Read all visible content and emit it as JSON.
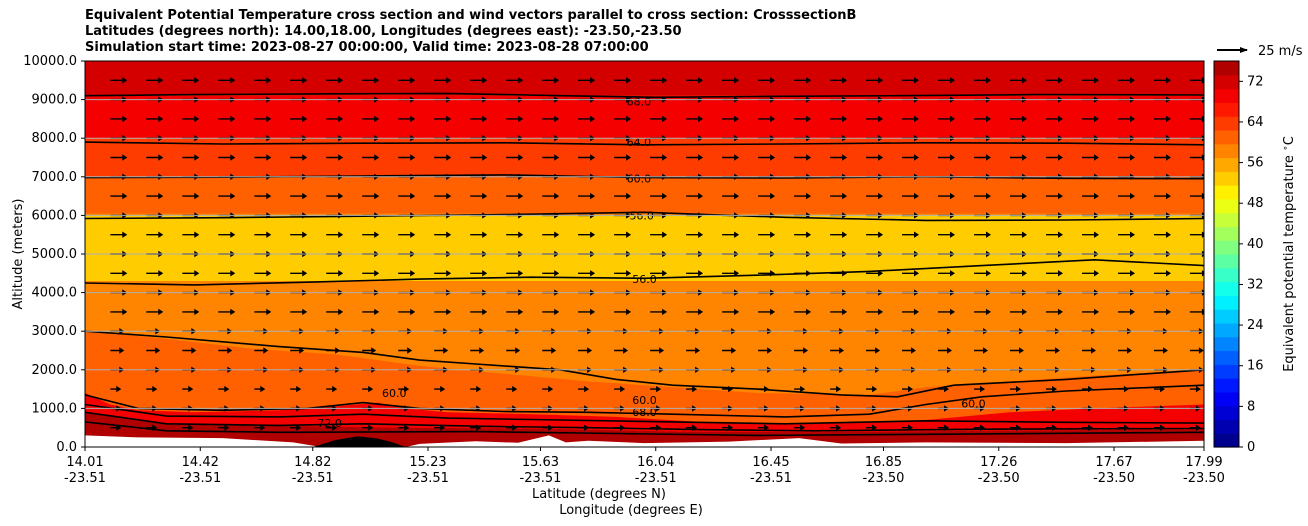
{
  "chart_data": {
    "type": "heatmap",
    "title": [
      "Equivalent Potential Temperature cross section and wind vectors parallel to cross section: CrosssectionB",
      "Latitudes (degrees north): 14.00,18.00, Longitudes (degrees east): -23.50,-23.50",
      "Simulation start time: 2023-08-27 00:00:00, Valid time: 2023-08-28 07:00:00"
    ],
    "ylabel": "Altitude (meters)",
    "xlabel_lines": [
      "Latitude (degrees N)",
      "Longitude (degrees E)"
    ],
    "ylim": [
      0,
      10000
    ],
    "xlim": [
      14.01,
      17.99
    ],
    "y_ticks": [
      0,
      1000,
      2000,
      3000,
      4000,
      5000,
      6000,
      7000,
      8000,
      9000,
      10000
    ],
    "y_tick_labels": [
      "0.0",
      "1000.0",
      "2000.0",
      "3000.0",
      "4000.0",
      "5000.0",
      "6000.0",
      "7000.0",
      "8000.0",
      "9000.0",
      "10000.0"
    ],
    "x_ticks": [
      {
        "lat": "14.01",
        "lon": "-23.51"
      },
      {
        "lat": "14.42",
        "lon": "-23.51"
      },
      {
        "lat": "14.82",
        "lon": "-23.51"
      },
      {
        "lat": "15.23",
        "lon": "-23.51"
      },
      {
        "lat": "15.63",
        "lon": "-23.51"
      },
      {
        "lat": "16.04",
        "lon": "-23.51"
      },
      {
        "lat": "16.45",
        "lon": "-23.51"
      },
      {
        "lat": "16.85",
        "lon": "-23.50"
      },
      {
        "lat": "17.26",
        "lon": "-23.50"
      },
      {
        "lat": "17.67",
        "lon": "-23.50"
      },
      {
        "lat": "17.99",
        "lon": "-23.50"
      }
    ],
    "grid": "horizontal",
    "colorbar": {
      "label": "Equivalent potential temperature $^\\circ$C",
      "range": [
        0,
        76
      ],
      "ticks": [
        "0",
        "8",
        "16",
        "24",
        "32",
        "40",
        "48",
        "56",
        "64",
        "72"
      ],
      "colors": [
        "#00008f",
        "#0000b0",
        "#0000d4",
        "#0000f5",
        "#0018ff",
        "#003cff",
        "#0060ff",
        "#0084ff",
        "#00a8ff",
        "#00ccff",
        "#00f0ff",
        "#14ffeb",
        "#38ffc7",
        "#5cffa3",
        "#80ff80",
        "#a3ff5c",
        "#c7ff38",
        "#ebff14",
        "#fff000",
        "#ffcc00",
        "#ffa800",
        "#ff8400",
        "#ff6000",
        "#ff3c00",
        "#ff1800",
        "#f50000",
        "#d40000",
        "#b00000"
      ]
    },
    "contour_labels": [
      {
        "text": "68.0",
        "lat": 15.98,
        "alt": 8850
      },
      {
        "text": "64.0",
        "lat": 15.98,
        "alt": 7800
      },
      {
        "text": "60.0",
        "lat": 15.98,
        "alt": 6850
      },
      {
        "text": "56.0",
        "lat": 15.99,
        "alt": 5900
      },
      {
        "text": "56.0",
        "lat": 16.0,
        "alt": 4250
      },
      {
        "text": "60.0",
        "lat": 15.11,
        "alt": 1300
      },
      {
        "text": "60.0",
        "lat": 16.0,
        "alt": 1120
      },
      {
        "text": "68.0",
        "lat": 16.0,
        "alt": 800
      },
      {
        "text": "72.0",
        "lat": 14.88,
        "alt": 520
      },
      {
        "text": "60.0",
        "lat": 17.17,
        "alt": 1020
      }
    ],
    "wind_reference": "25 m/s"
  }
}
